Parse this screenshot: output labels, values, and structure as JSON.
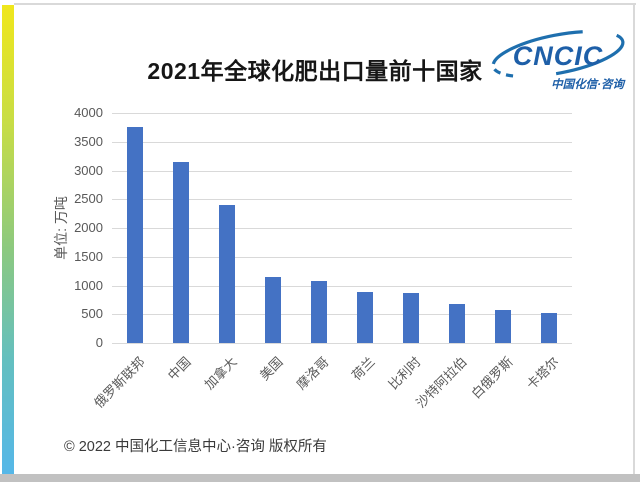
{
  "header": {
    "title": "2021年全球化肥出口量前十国家",
    "logo": {
      "name": "CNCIC",
      "tagline": "中国化信·咨询",
      "color": "#1e5fa8"
    }
  },
  "accents": {
    "gradient_top": "#f0e71c",
    "gradient_mid": "#8cc97f",
    "gradient_bottom": "#55b7e8",
    "frame_line": "#d9d9d9",
    "bottom_bar": "#c1c1c1"
  },
  "chart_data": {
    "type": "bar",
    "title": "2021年全球化肥出口量前十国家",
    "categories": [
      "俄罗斯联邦",
      "中国",
      "加拿大",
      "美国",
      "摩洛哥",
      "荷兰",
      "比利时",
      "沙特阿拉伯",
      "白俄罗斯",
      "卡塔尔"
    ],
    "values": [
      3750,
      3150,
      2400,
      1150,
      1070,
      890,
      870,
      670,
      580,
      520
    ],
    "xlabel": "",
    "ylabel": "单位: 万吨",
    "ylim": [
      0,
      4000
    ],
    "yticks": [
      0,
      500,
      1000,
      1500,
      2000,
      2500,
      3000,
      3500,
      4000
    ],
    "grid": true,
    "legend_position": "none",
    "bar_color": "#4472c4",
    "gridline_color": "#d9d9d9",
    "tick_label_color": "#595959"
  },
  "footer": {
    "copyright": "© 2022 中国化工信息中心·咨询 版权所有"
  }
}
